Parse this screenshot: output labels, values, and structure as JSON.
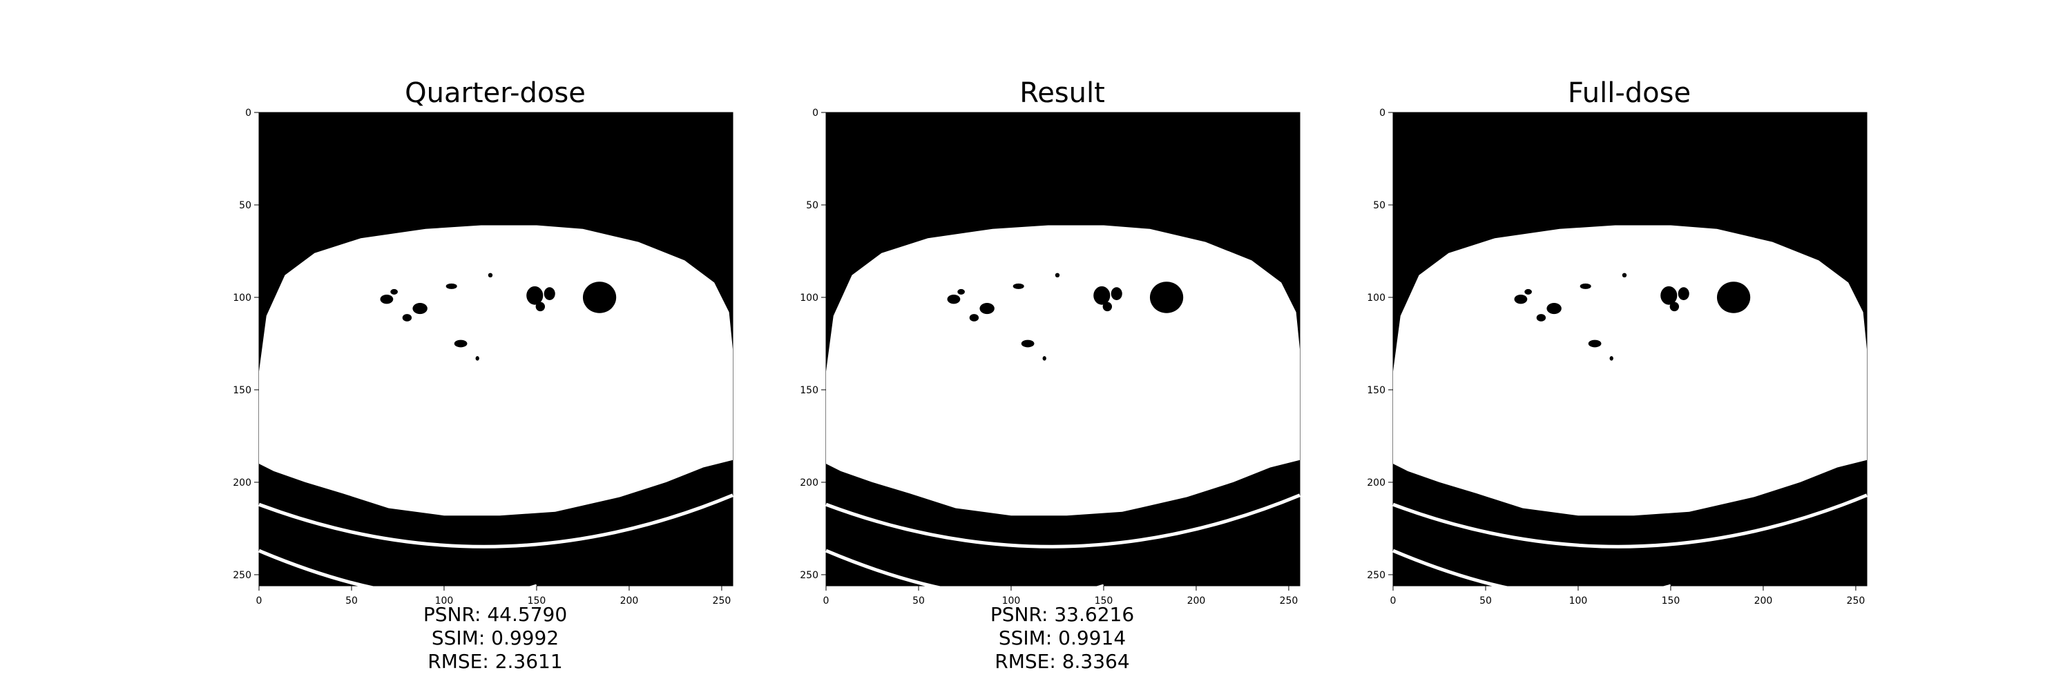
{
  "panels": [
    {
      "title": "Quarter-dose",
      "metrics": {
        "psnr": "PSNR: 44.5790",
        "ssim": "SSIM: 0.9992",
        "rmse": "RMSE: 2.3611"
      }
    },
    {
      "title": "Result",
      "metrics": {
        "psnr": "PSNR: 33.6216",
        "ssim": "SSIM: 0.9914",
        "rmse": "RMSE: 8.3364"
      }
    },
    {
      "title": "Full-dose",
      "metrics": {
        "psnr": "",
        "ssim": "",
        "rmse": ""
      }
    }
  ],
  "axis_ticks": {
    "x": [
      "0",
      "50",
      "100",
      "150",
      "200",
      "250"
    ],
    "y": [
      "0",
      "50",
      "100",
      "150",
      "200",
      "250"
    ]
  },
  "colors": {
    "background": "#000000",
    "tissue": "#ffffff"
  }
}
